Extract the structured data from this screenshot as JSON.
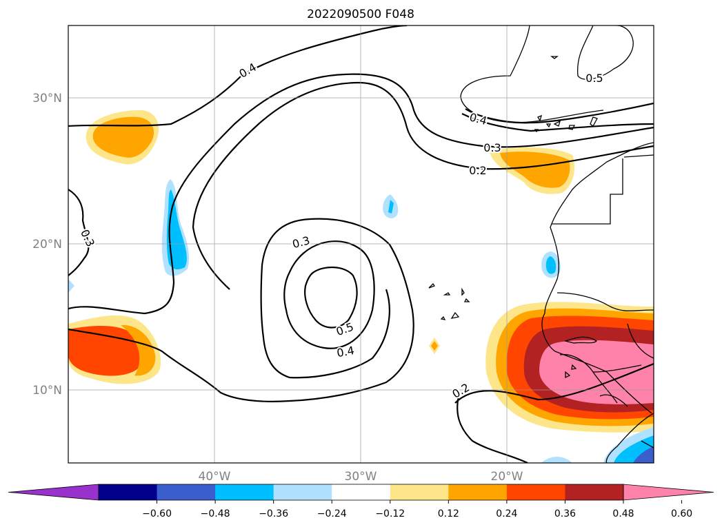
{
  "title": "2022090500 F048",
  "lat_labels": [
    "30°N",
    "20°N",
    "10°N"
  ],
  "lon_labels": [
    "40°W",
    "30°W",
    "20°W"
  ],
  "contour_labels": [
    "0.4",
    "0.5",
    "0.4",
    "0.3",
    "0.2",
    "0.3",
    "0.3",
    "0.5",
    "0.4",
    "0.2"
  ],
  "colorbar": {
    "ticks": [
      "−0.60",
      "−0.48",
      "−0.36",
      "−0.24",
      "−0.12",
      "0.12",
      "0.24",
      "0.36",
      "0.48",
      "0.60"
    ],
    "colors": [
      "#9932cc",
      "#00008b",
      "#3a5fcd",
      "#00bfff",
      "#b0e2ff",
      "#ffffff",
      "#fde68a",
      "#ffa500",
      "#ff4500",
      "#b22222",
      "#ff82ab"
    ]
  }
}
